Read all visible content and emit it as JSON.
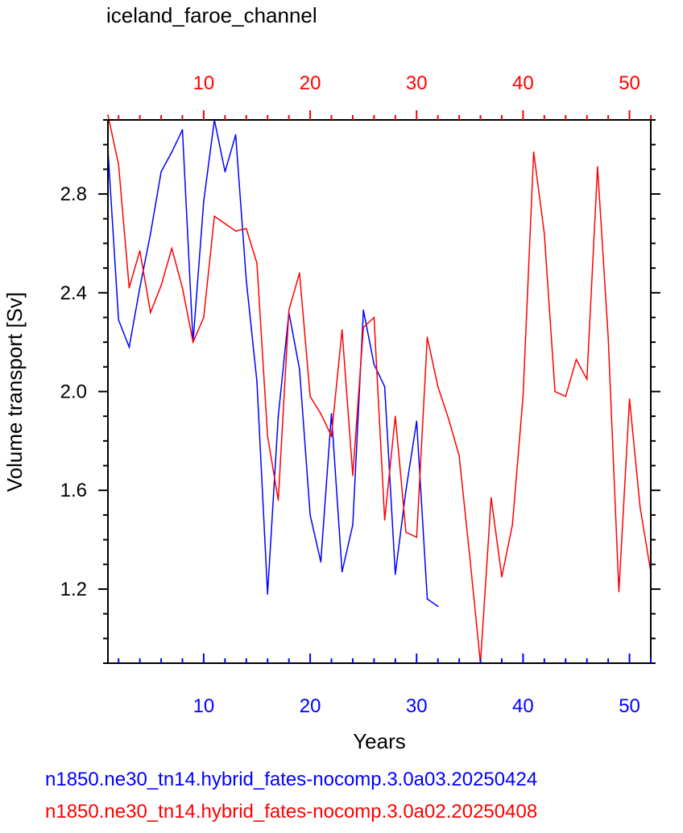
{
  "chart_data": {
    "type": "line",
    "title": "iceland_faroe_channel",
    "xlabel": "Years",
    "ylabel": "Volume transport [Sv]",
    "xlim": [
      1,
      52
    ],
    "ylim": [
      0.9,
      3.1
    ],
    "bottom_ticks": [
      "10",
      "20",
      "30",
      "40",
      "50"
    ],
    "top_ticks": [
      "10",
      "20",
      "30",
      "40",
      "50"
    ],
    "y_ticks": [
      "1.2",
      "1.6",
      "2.0",
      "2.4",
      "2.8"
    ],
    "grid": false,
    "legend_placement": "bottom",
    "series": [
      {
        "name": "n1850.ne30_tn14.hybrid_fates-nocomp.3.0a03.20250424",
        "color": "#0000ff",
        "x": [
          1,
          2,
          3,
          4,
          5,
          6,
          7,
          8,
          9,
          10,
          11,
          12,
          13,
          14,
          15,
          16,
          17,
          18,
          19,
          20,
          21,
          22,
          23,
          24,
          25,
          26,
          27,
          28,
          29,
          30,
          31,
          32
        ],
        "values": [
          2.98,
          2.29,
          2.18,
          2.42,
          2.64,
          2.89,
          2.97,
          3.06,
          2.2,
          2.77,
          3.1,
          2.89,
          3.04,
          2.45,
          2.04,
          1.18,
          1.9,
          2.32,
          2.09,
          1.5,
          1.31,
          1.91,
          1.27,
          1.46,
          2.33,
          2.11,
          2.02,
          1.26,
          1.6,
          1.88,
          1.16,
          1.13
        ]
      },
      {
        "name": "n1850.ne30_tn14.hybrid_fates-nocomp.3.0a02.20250408",
        "color": "#ff0000",
        "x": [
          1,
          2,
          3,
          4,
          5,
          6,
          7,
          8,
          9,
          10,
          11,
          12,
          13,
          14,
          15,
          16,
          17,
          18,
          19,
          20,
          21,
          22,
          23,
          24,
          25,
          26,
          27,
          28,
          29,
          30,
          31,
          32,
          33,
          34,
          35,
          36,
          37,
          38,
          39,
          40,
          41,
          42,
          43,
          44,
          45,
          46,
          47,
          48,
          49,
          50,
          51,
          52
        ],
        "values": [
          3.12,
          2.92,
          2.42,
          2.57,
          2.32,
          2.43,
          2.58,
          2.42,
          2.2,
          2.3,
          2.71,
          2.68,
          2.65,
          2.66,
          2.52,
          1.82,
          1.56,
          2.33,
          2.48,
          1.98,
          1.91,
          1.82,
          2.25,
          1.66,
          2.26,
          2.3,
          1.48,
          1.9,
          1.43,
          1.41,
          2.22,
          2.02,
          1.89,
          1.74,
          1.33,
          0.9,
          1.57,
          1.25,
          1.46,
          1.98,
          2.97,
          2.64,
          2.0,
          1.98,
          2.13,
          2.05,
          2.91,
          2.22,
          1.19,
          1.97,
          1.53,
          1.27
        ]
      }
    ]
  }
}
